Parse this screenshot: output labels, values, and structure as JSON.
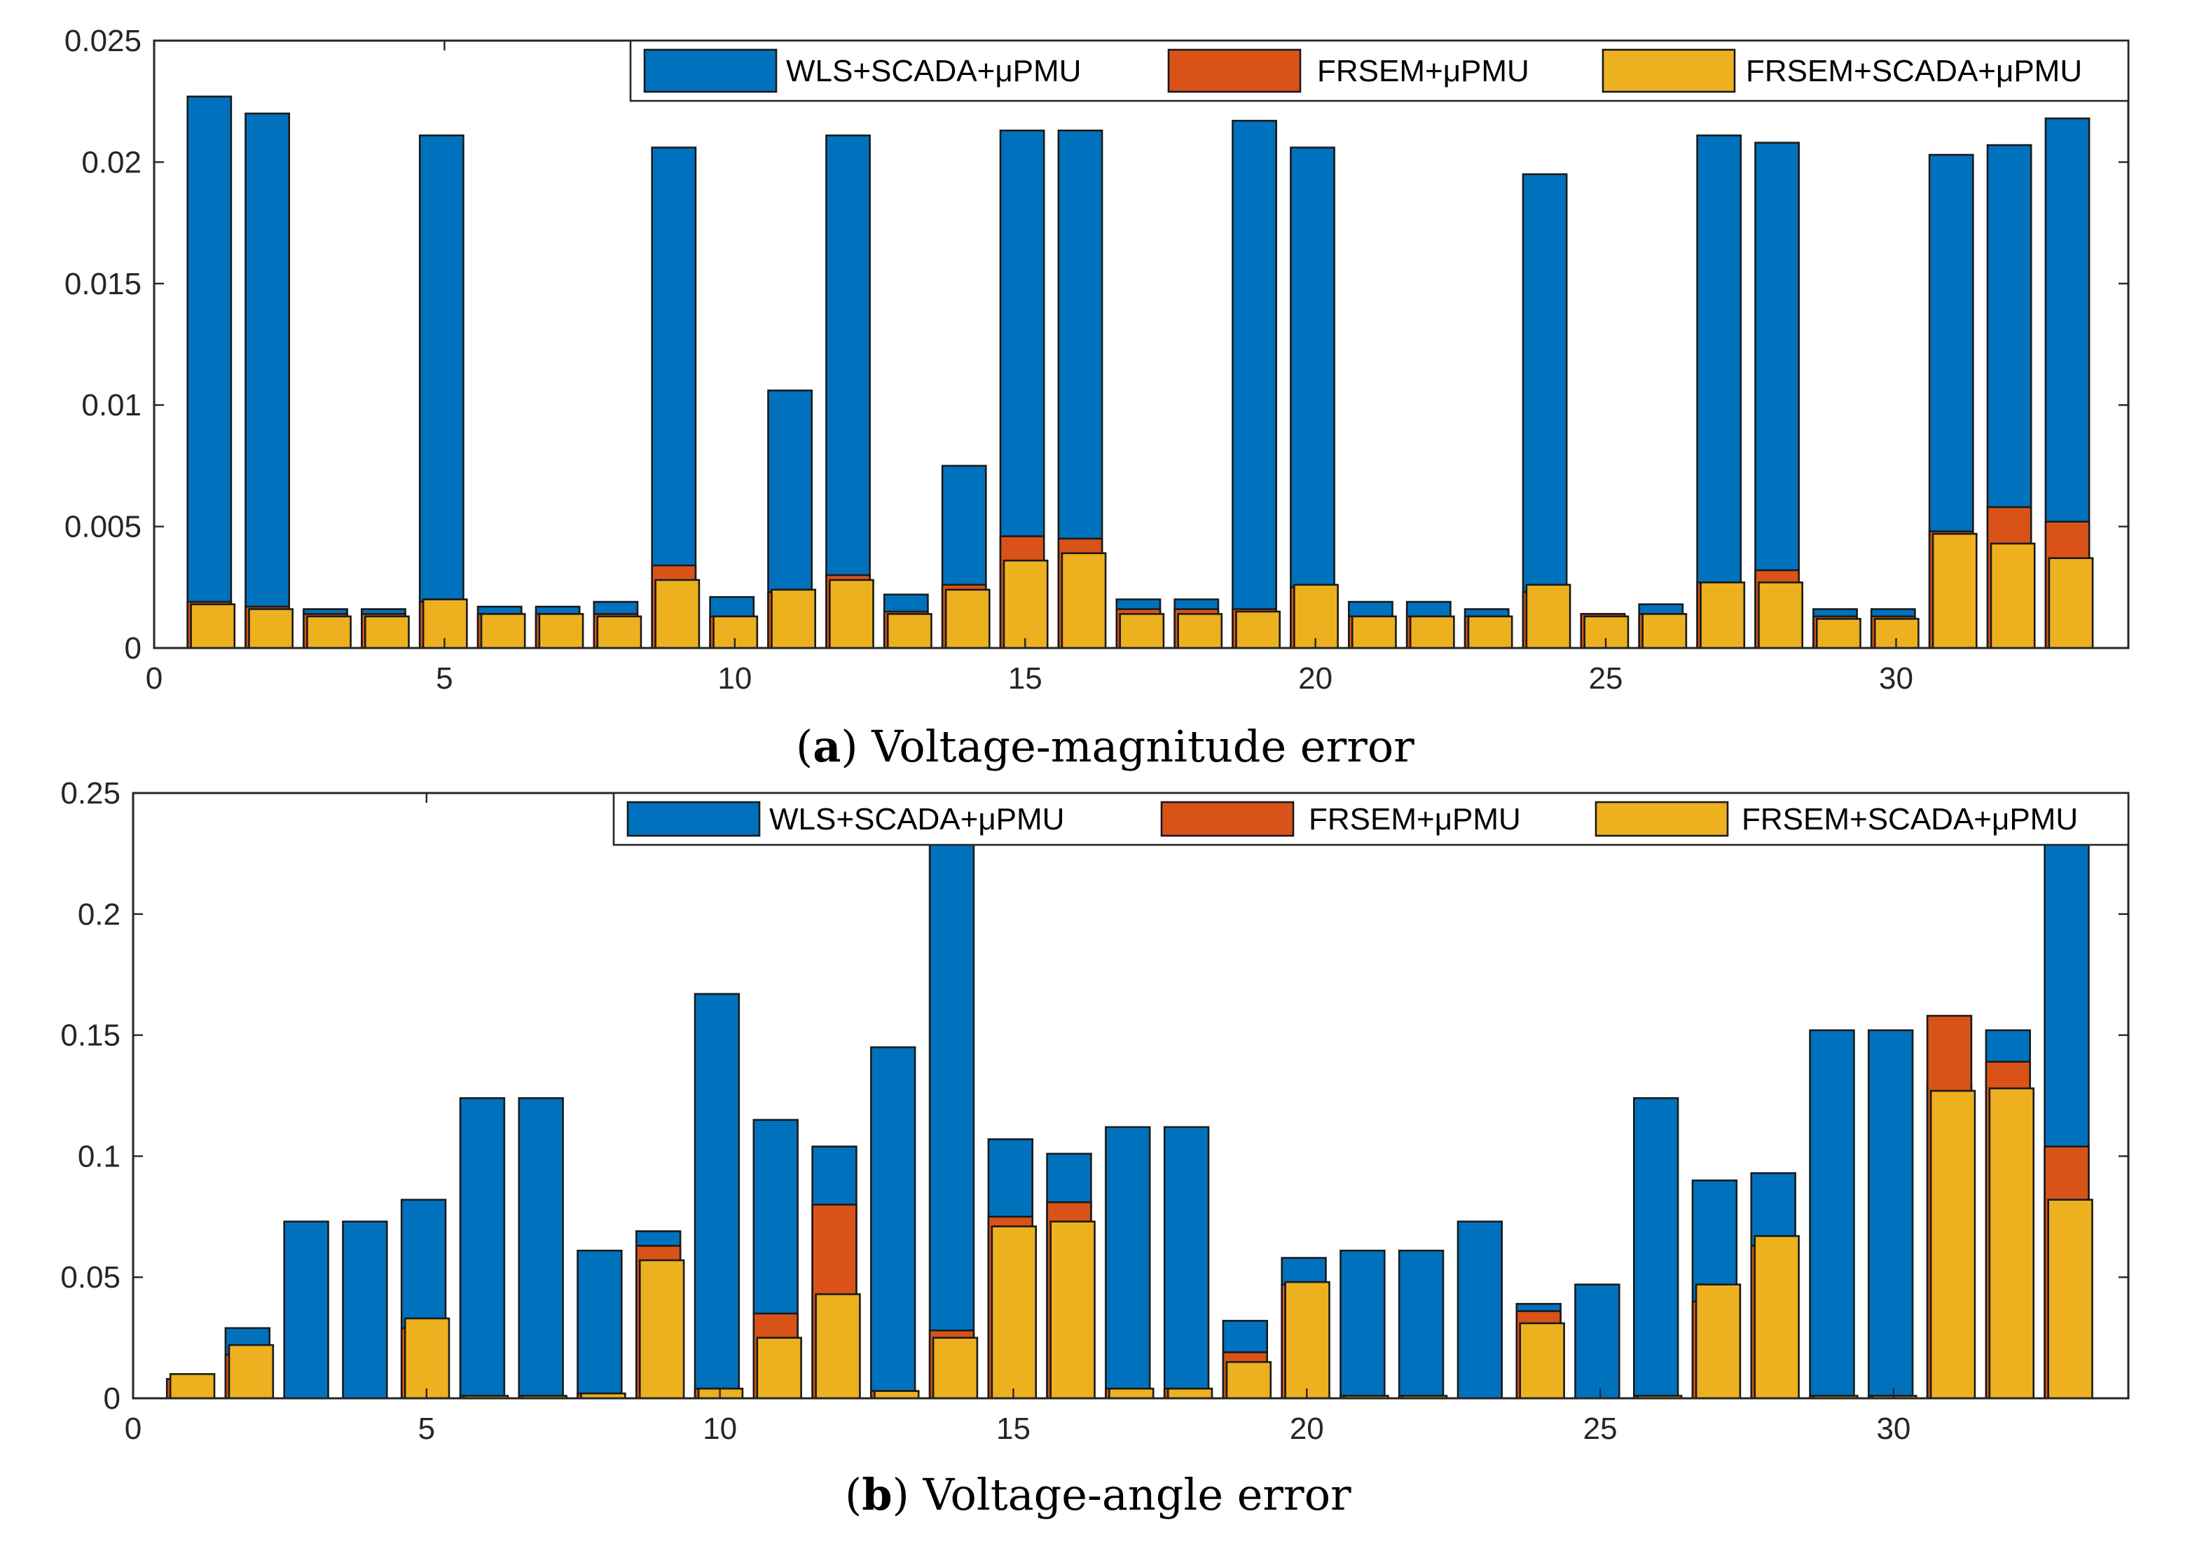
{
  "chart_data": [
    {
      "type": "bar",
      "caption_letter": "a",
      "caption_text": "Voltage-magnitude error",
      "x": [
        1,
        2,
        3,
        4,
        5,
        6,
        7,
        8,
        9,
        10,
        11,
        12,
        13,
        14,
        15,
        16,
        17,
        18,
        19,
        20,
        21,
        22,
        23,
        24,
        25,
        26,
        27,
        28,
        29,
        30,
        31,
        32,
        33
      ],
      "xlim": [
        0,
        34
      ],
      "xticks": [
        0,
        5,
        10,
        15,
        20,
        25,
        30
      ],
      "ylim": [
        0,
        0.025
      ],
      "yticks": [
        0,
        0.005,
        0.01,
        0.015,
        0.02,
        0.025
      ],
      "ytick_labels": [
        "0",
        "0.005",
        "0.01",
        "0.015",
        "0.02",
        "0.025"
      ],
      "legend_position": "top-right",
      "series": [
        {
          "name": "WLS+SCADA+μPMU",
          "color": "#0072BD",
          "values": [
            0.0227,
            0.022,
            0.0016,
            0.0016,
            0.0211,
            0.0017,
            0.0017,
            0.0019,
            0.0206,
            0.0021,
            0.0106,
            0.0211,
            0.0022,
            0.0075,
            0.0213,
            0.0213,
            0.002,
            0.002,
            0.0217,
            0.0206,
            0.0019,
            0.0019,
            0.0016,
            0.0195,
            0.0014,
            0.0018,
            0.0211,
            0.0208,
            0.0016,
            0.0016,
            0.0203,
            0.0207,
            0.0218
          ]
        },
        {
          "name": "FRSEM+μPMU",
          "color": "#D95319",
          "values": [
            0.0019,
            0.0017,
            0.0014,
            0.0014,
            0.0019,
            0.0014,
            0.0014,
            0.0014,
            0.0034,
            0.0013,
            0.0023,
            0.003,
            0.0015,
            0.0026,
            0.0046,
            0.0045,
            0.0016,
            0.0016,
            0.0016,
            0.0025,
            0.0013,
            0.0013,
            0.0013,
            0.0023,
            0.0014,
            0.0014,
            0.0027,
            0.0032,
            0.0013,
            0.0013,
            0.0048,
            0.0058,
            0.0052
          ]
        },
        {
          "name": "FRSEM+SCADA+μPMU",
          "color": "#EDB120",
          "values": [
            0.0018,
            0.0016,
            0.0013,
            0.0013,
            0.002,
            0.0014,
            0.0014,
            0.0013,
            0.0028,
            0.0013,
            0.0024,
            0.0028,
            0.0014,
            0.0024,
            0.0036,
            0.0039,
            0.0014,
            0.0014,
            0.0015,
            0.0026,
            0.0013,
            0.0013,
            0.0013,
            0.0026,
            0.0013,
            0.0014,
            0.0027,
            0.0027,
            0.0012,
            0.0012,
            0.0047,
            0.0043,
            0.0037
          ]
        }
      ]
    },
    {
      "type": "bar",
      "caption_letter": "b",
      "caption_text": "Voltage-angle error",
      "x": [
        1,
        2,
        3,
        4,
        5,
        6,
        7,
        8,
        9,
        10,
        11,
        12,
        13,
        14,
        15,
        16,
        17,
        18,
        19,
        20,
        21,
        22,
        23,
        24,
        25,
        26,
        27,
        28,
        29,
        30,
        31,
        32,
        33
      ],
      "xlim": [
        0,
        34
      ],
      "xticks": [
        0,
        5,
        10,
        15,
        20,
        25,
        30
      ],
      "ylim": [
        0,
        0.25
      ],
      "yticks": [
        0,
        0.05,
        0.1,
        0.15,
        0.2,
        0.25
      ],
      "ytick_labels": [
        "0",
        "0.05",
        "0.1",
        "0.15",
        "0.2",
        "0.25"
      ],
      "legend_position": "top-right",
      "series": [
        {
          "name": "WLS+SCADA+μPMU",
          "color": "#0072BD",
          "values": [
            0.0,
            0.029,
            0.073,
            0.073,
            0.082,
            0.124,
            0.124,
            0.061,
            0.069,
            0.167,
            0.115,
            0.104,
            0.145,
            0.25,
            0.107,
            0.101,
            0.112,
            0.112,
            0.032,
            0.058,
            0.061,
            0.061,
            0.073,
            0.039,
            0.047,
            0.124,
            0.09,
            0.093,
            0.152,
            0.152,
            0.13,
            0.152,
            0.25
          ]
        },
        {
          "name": "FRSEM+μPMU",
          "color": "#D95319",
          "values": [
            0.008,
            0.018,
            0.0,
            0.0,
            0.029,
            0.001,
            0.001,
            0.002,
            0.063,
            0.004,
            0.035,
            0.08,
            0.003,
            0.028,
            0.075,
            0.081,
            0.004,
            0.004,
            0.019,
            0.047,
            0.001,
            0.001,
            0.0,
            0.036,
            0.0,
            0.001,
            0.04,
            0.063,
            0.001,
            0.001,
            0.158,
            0.139,
            0.104
          ]
        },
        {
          "name": "FRSEM+SCADA+μPMU",
          "color": "#EDB120",
          "values": [
            0.01,
            0.022,
            0.0,
            0.0,
            0.033,
            0.001,
            0.001,
            0.002,
            0.057,
            0.004,
            0.025,
            0.043,
            0.003,
            0.025,
            0.071,
            0.073,
            0.004,
            0.004,
            0.015,
            0.048,
            0.001,
            0.001,
            0.0,
            0.031,
            0.0,
            0.001,
            0.047,
            0.067,
            0.001,
            0.001,
            0.127,
            0.128,
            0.082
          ]
        }
      ]
    }
  ]
}
